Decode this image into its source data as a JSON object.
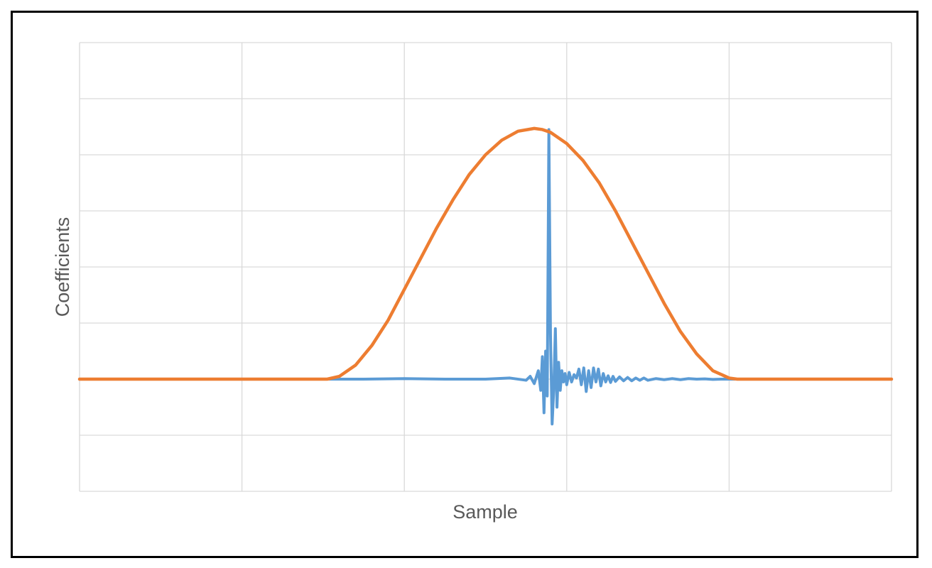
{
  "chart_data": {
    "type": "line",
    "title": "",
    "xlabel": "Sample",
    "ylabel": "Coefficients",
    "xlim": [
      0,
      1000
    ],
    "ylim": [
      -2,
      6
    ],
    "grid": true,
    "x_gridlines": 5,
    "y_gridlines": 8,
    "legend": "none",
    "series": [
      {
        "color": "#5b9bd5",
        "x": [
          0,
          50,
          100,
          150,
          200,
          250,
          300,
          350,
          400,
          450,
          500,
          530,
          550,
          555,
          560,
          565,
          568,
          570,
          572,
          574,
          576,
          578,
          580,
          582,
          584,
          586,
          588,
          590,
          592,
          594,
          596,
          598,
          600,
          603,
          606,
          609,
          612,
          615,
          618,
          621,
          624,
          627,
          630,
          633,
          636,
          639,
          642,
          645,
          648,
          651,
          654,
          657,
          660,
          665,
          670,
          675,
          680,
          685,
          690,
          695,
          700,
          710,
          720,
          730,
          740,
          750,
          760,
          770,
          780,
          790,
          800,
          850,
          900,
          950,
          1000
        ],
        "values": [
          0,
          0,
          0,
          0,
          0,
          0,
          0,
          0,
          0.01,
          0,
          0,
          0.02,
          -0.02,
          0.05,
          -0.08,
          0.15,
          -0.2,
          0.4,
          -0.6,
          0.5,
          -0.3,
          4.45,
          0.8,
          -0.8,
          -0.2,
          0.9,
          -0.5,
          0.3,
          -0.2,
          0.15,
          -0.05,
          0.1,
          -0.1,
          0.12,
          -0.05,
          0.08,
          0.02,
          0.18,
          -0.1,
          0.2,
          -0.22,
          0.15,
          -0.15,
          0.2,
          -0.05,
          0.18,
          -0.12,
          0.1,
          -0.05,
          0.06,
          -0.06,
          0.05,
          -0.04,
          0.04,
          -0.03,
          0.03,
          -0.03,
          0.02,
          -0.02,
          0.02,
          -0.02,
          0.01,
          -0.01,
          0.01,
          -0.01,
          0.01,
          0,
          0.005,
          -0.005,
          0,
          0,
          0,
          0,
          0,
          0
        ]
      },
      {
        "color": "#ed7d31",
        "x": [
          0,
          100,
          200,
          300,
          305,
          320,
          340,
          360,
          380,
          400,
          420,
          440,
          460,
          480,
          500,
          520,
          540,
          560,
          570,
          580,
          600,
          620,
          640,
          660,
          680,
          700,
          720,
          740,
          760,
          780,
          800,
          810,
          820,
          900,
          1000
        ],
        "values": [
          0,
          0,
          0,
          0,
          0,
          0.05,
          0.25,
          0.6,
          1.05,
          1.6,
          2.15,
          2.7,
          3.2,
          3.65,
          4.0,
          4.26,
          4.42,
          4.47,
          4.45,
          4.4,
          4.2,
          3.9,
          3.5,
          3.0,
          2.45,
          1.9,
          1.35,
          0.85,
          0.45,
          0.15,
          0.02,
          0,
          0,
          0,
          0
        ]
      }
    ]
  }
}
